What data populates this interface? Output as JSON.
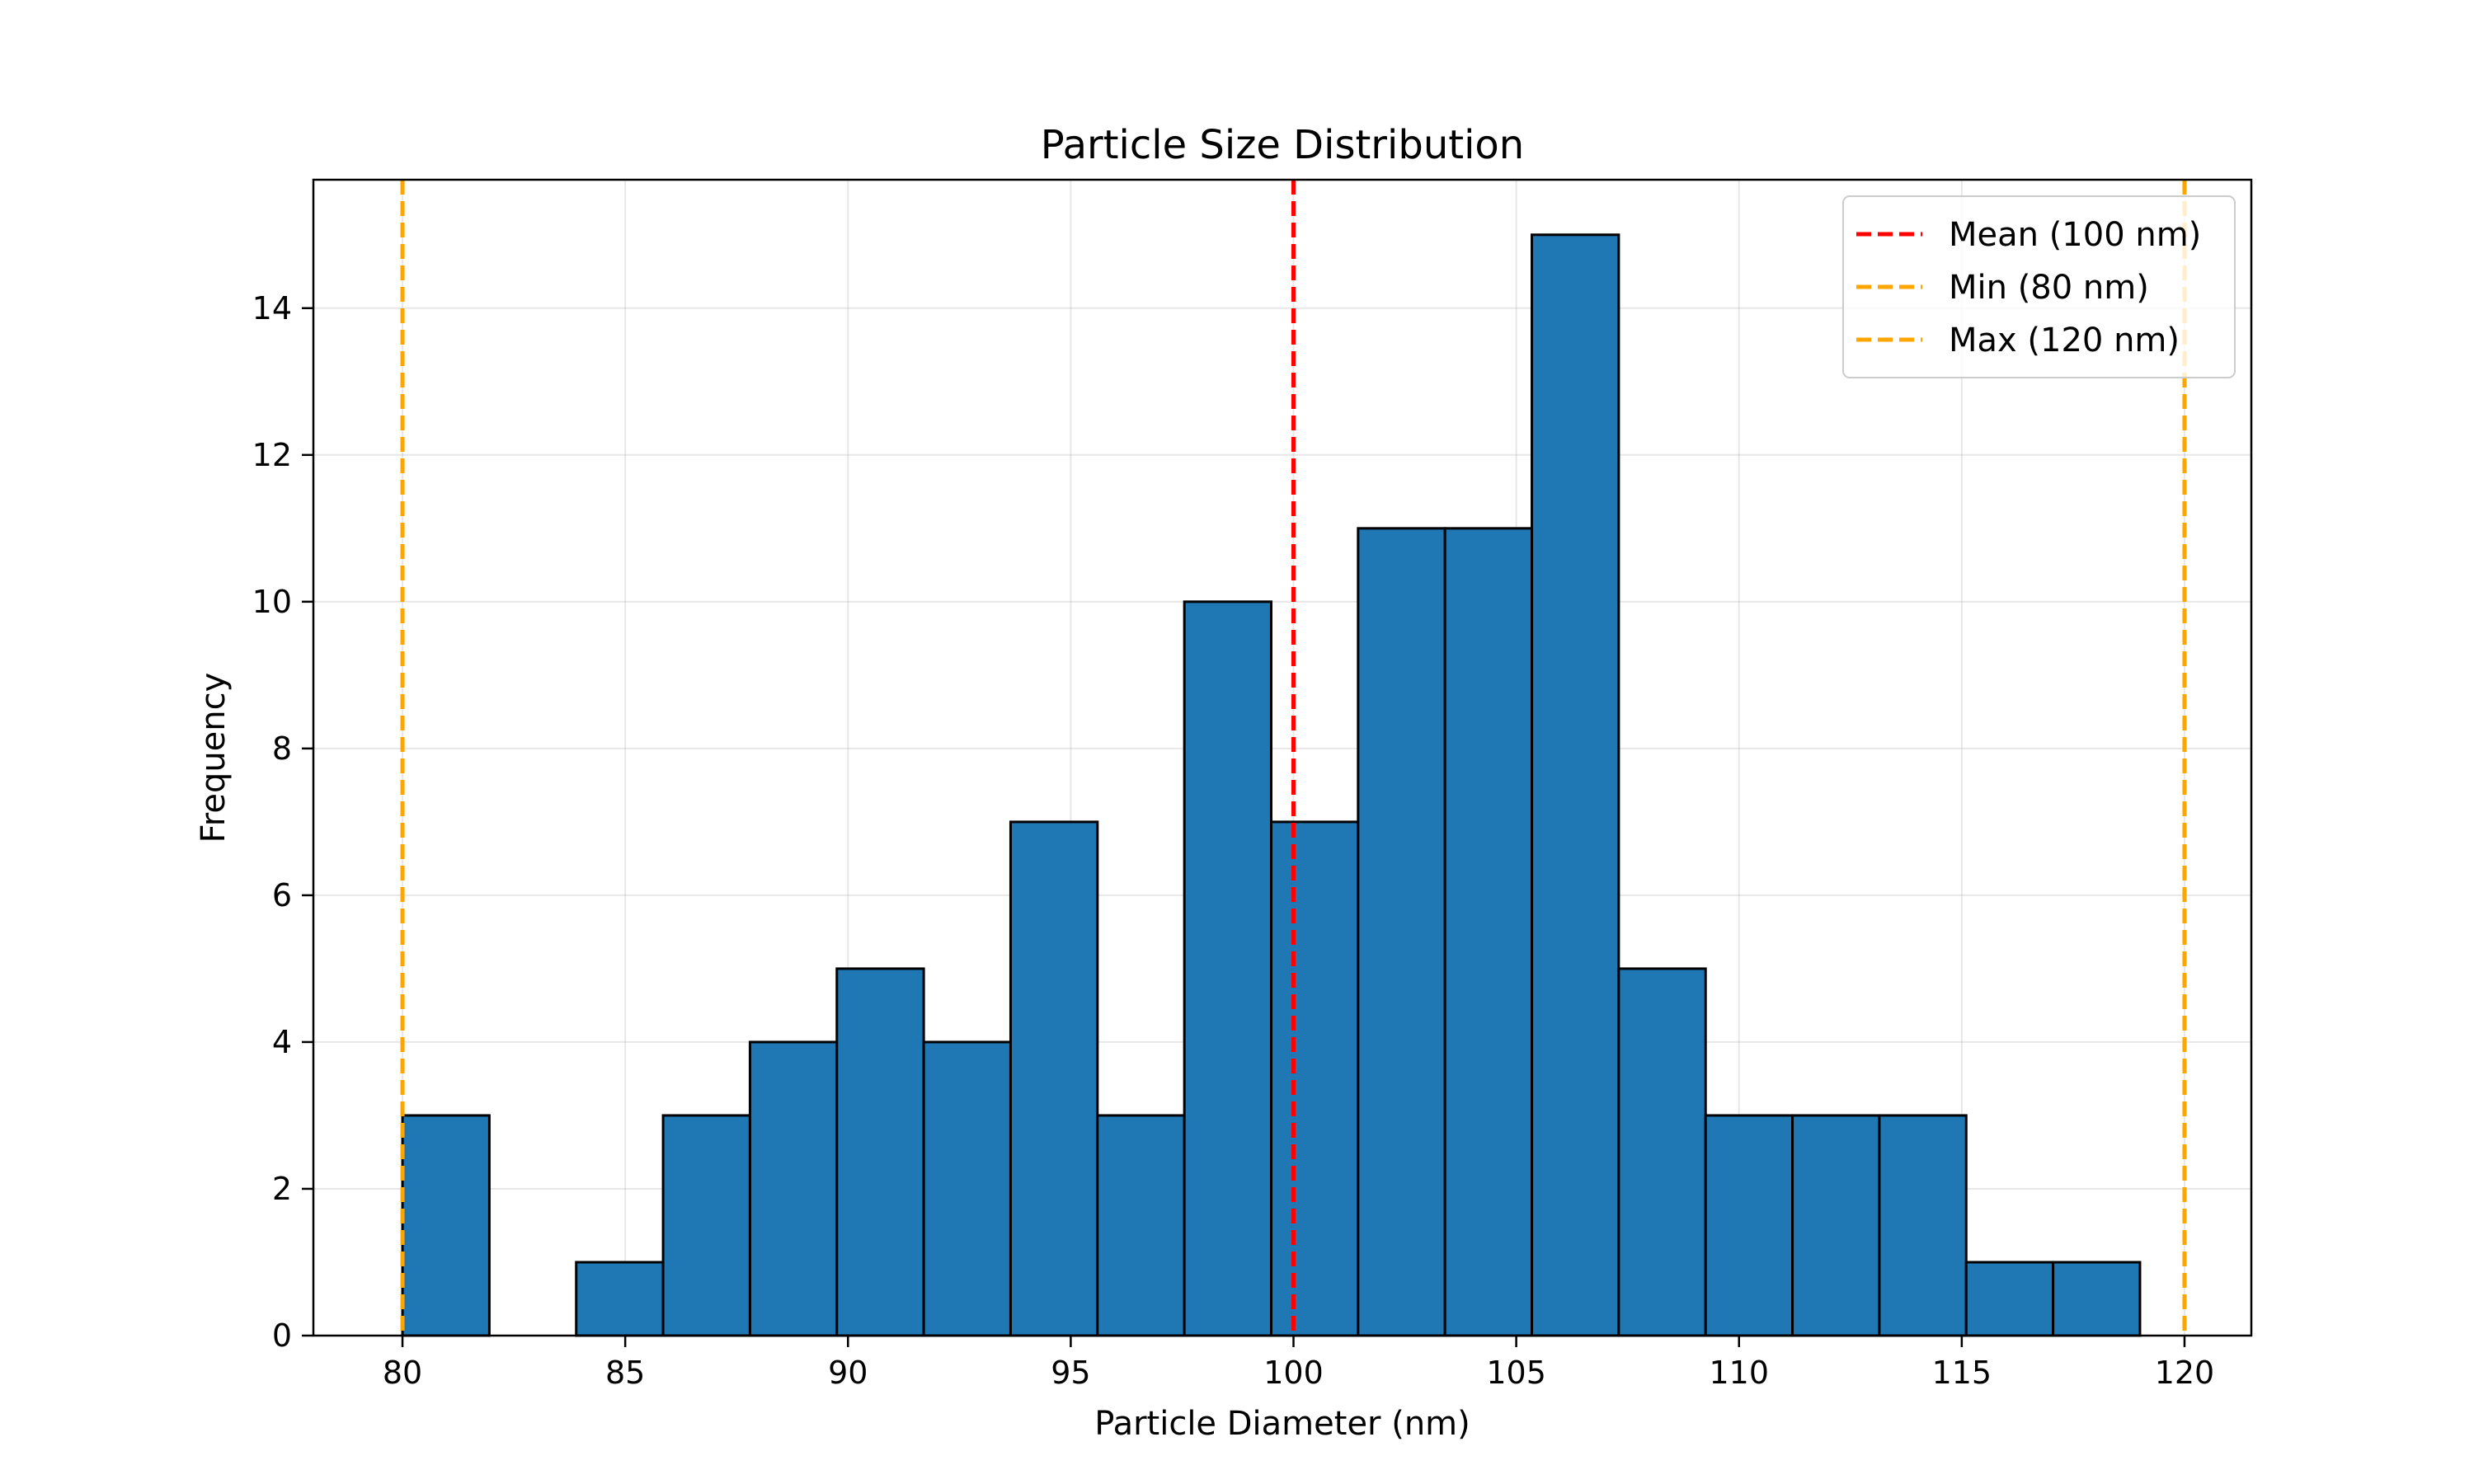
{
  "chart_data": {
    "type": "bar",
    "title": "Particle Size Distribution",
    "xlabel": "Particle Diameter (nm)",
    "ylabel": "Frequency",
    "xlim": [
      78.0,
      121.5
    ],
    "ylim": [
      0,
      15.75
    ],
    "xticks": [
      80,
      85,
      90,
      95,
      100,
      105,
      110,
      115,
      120
    ],
    "yticks": [
      0,
      2,
      4,
      6,
      8,
      10,
      12,
      14
    ],
    "grid": true,
    "bins": {
      "edges": [
        80.0,
        81.95,
        83.9,
        85.85,
        87.8,
        89.75,
        91.7,
        93.65,
        95.6,
        97.55,
        99.5,
        101.45,
        103.4,
        105.35,
        107.3,
        109.25,
        111.2,
        113.15,
        115.1,
        117.05,
        119.0
      ],
      "counts": [
        3,
        0,
        1,
        3,
        4,
        5,
        4,
        7,
        3,
        10,
        7,
        11,
        11,
        15,
        5,
        3,
        3,
        3,
        1,
        1
      ],
      "fill_color": "#1f77b4",
      "edge_color": "#000000"
    },
    "reference_lines": [
      {
        "name": "Mean (100 nm)",
        "x": 100,
        "color": "#ff0000",
        "style": "dashed"
      },
      {
        "name": "Min (80 nm)",
        "x": 80,
        "color": "#ffa500",
        "style": "dashed"
      },
      {
        "name": "Max (120 nm)",
        "x": 120,
        "color": "#ffa500",
        "style": "dashed"
      }
    ],
    "legend_position": "top-right"
  }
}
